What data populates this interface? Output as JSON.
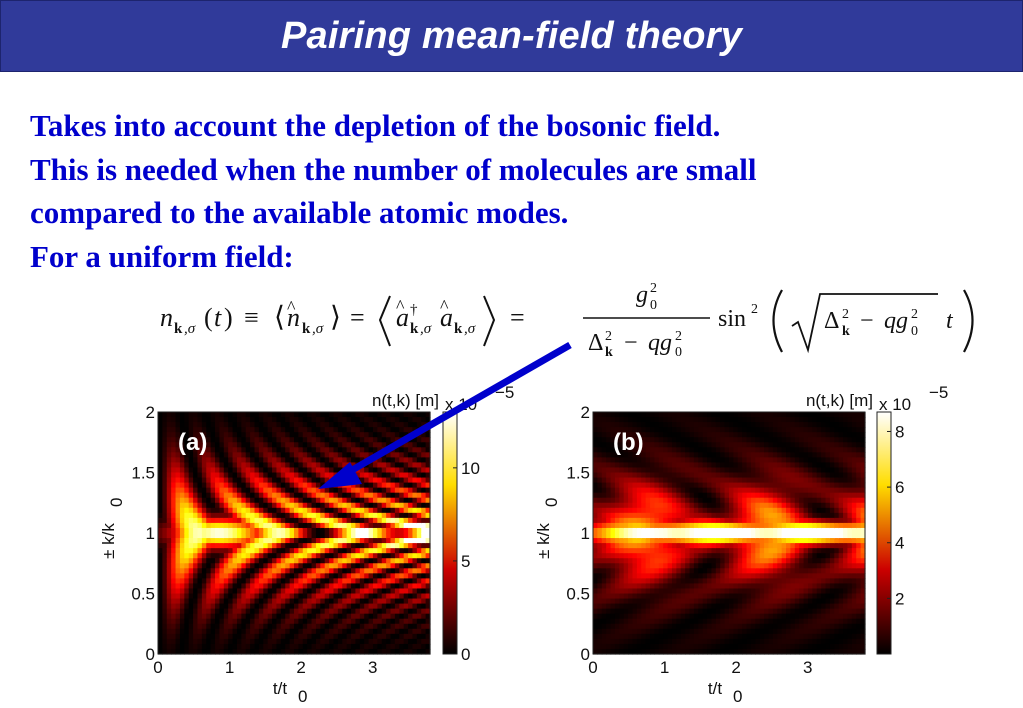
{
  "slide": {
    "title": "Pairing mean-field theory",
    "lines": [
      "Takes into account the depletion of the bosonic field.",
      "This is needed when the number of molecules are small",
      "compared to the available atomic modes.",
      "For a uniform field:"
    ],
    "arrow_color": "#0000cc"
  },
  "chart_data": [
    {
      "type": "heatmap",
      "panel_label": "(a)",
      "colorbar_title": "n(t,k) [m]",
      "colorbar_exponent": "x 10",
      "colorbar_exponent_power": "−5",
      "colorbar_range": [
        0,
        13
      ],
      "colorbar_ticks": [
        "0",
        "5",
        "10"
      ],
      "colormap": "hot",
      "xlabel": "t/t",
      "xlabel_sub": "0",
      "ylabel": "± k/k",
      "ylabel_sub": "0",
      "xlim": [
        0,
        3.8
      ],
      "ylim": [
        0,
        2
      ],
      "xticks": [
        "0",
        "1",
        "2",
        "3"
      ],
      "yticks": [
        "0",
        "0.5",
        "1",
        "1.5",
        "2"
      ]
    },
    {
      "type": "heatmap",
      "panel_label": "(b)",
      "colorbar_title": "n(t,k) [m]",
      "colorbar_exponent": "x 10",
      "colorbar_exponent_power": "−5",
      "colorbar_range": [
        0,
        8.7
      ],
      "colorbar_ticks": [
        "2",
        "4",
        "6",
        "8"
      ],
      "colormap": "hot",
      "xlabel": "t/t",
      "xlabel_sub": "0",
      "ylabel": "± k/k",
      "ylabel_sub": "0",
      "xlim": [
        0,
        3.8
      ],
      "ylim": [
        0,
        2
      ],
      "xticks": [
        "0",
        "1",
        "2",
        "3"
      ],
      "yticks": [
        "0",
        "0.5",
        "1",
        "1.5",
        "2"
      ]
    }
  ]
}
